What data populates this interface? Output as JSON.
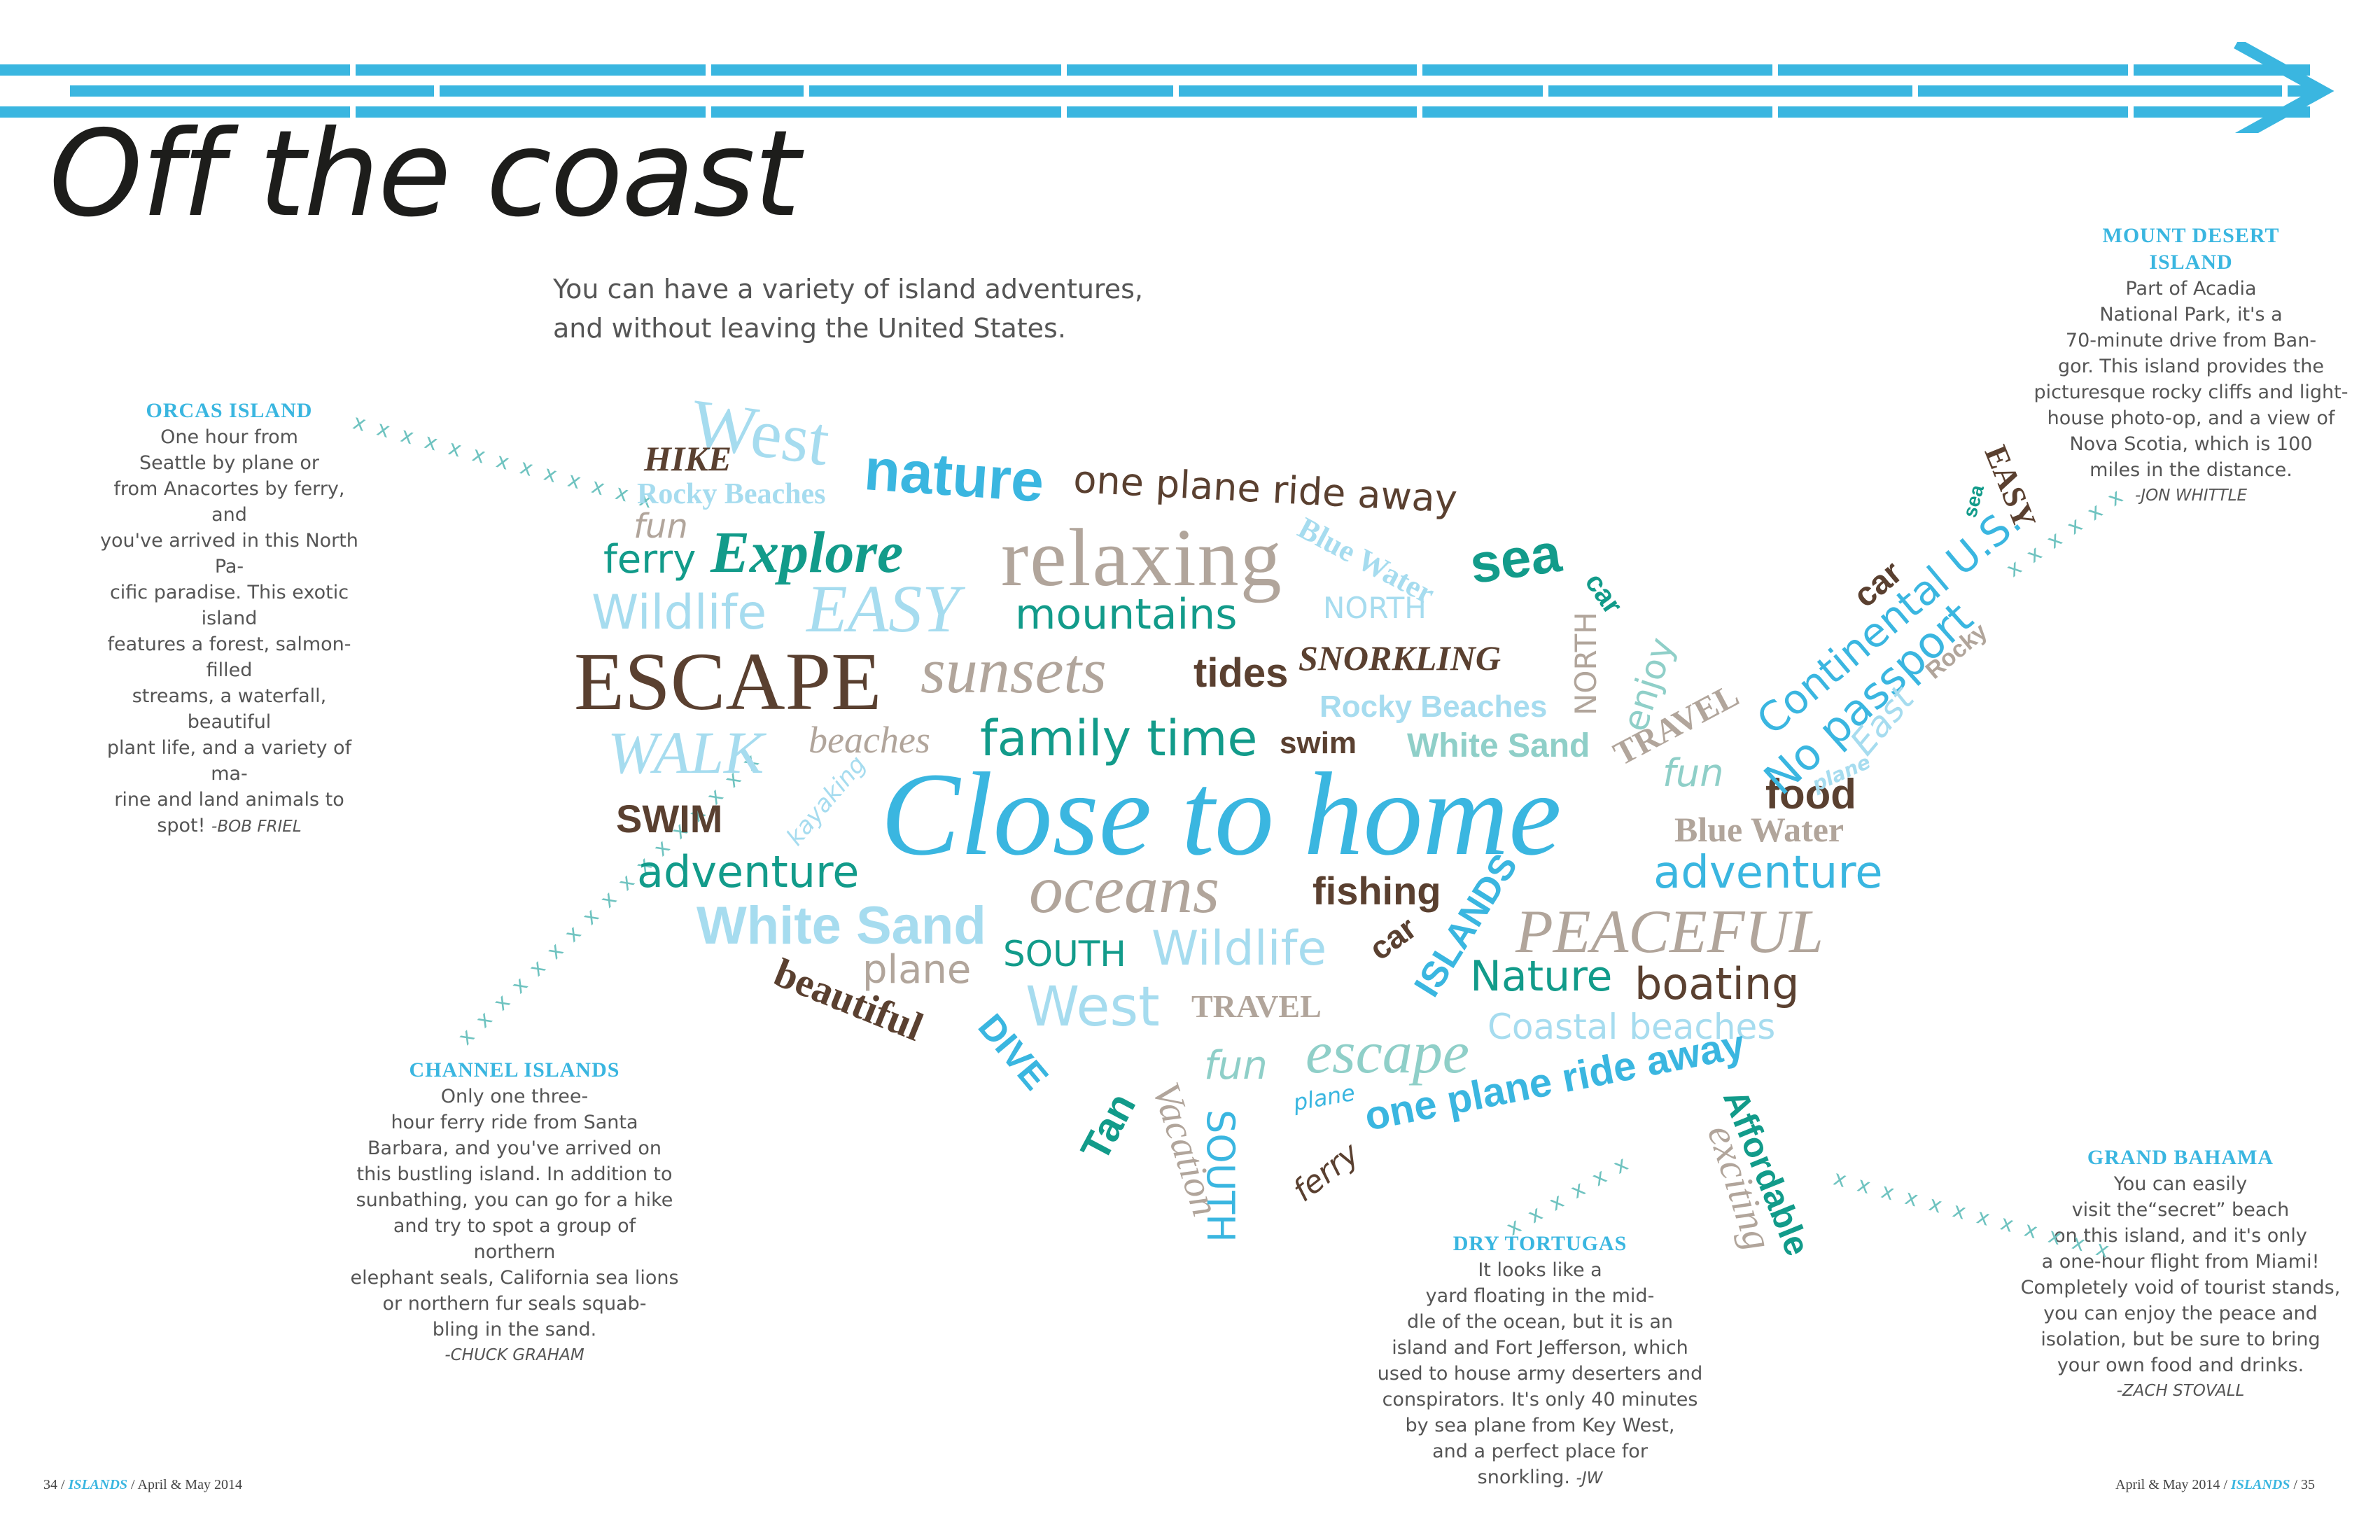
{
  "title": "Off the coast",
  "subtitle_lines": [
    "You can have a variety of island adventures,",
    "and without leaving the United States."
  ],
  "colors": {
    "accent": "#3ab6e0",
    "teal": "#129b8a",
    "brown": "#5a4030",
    "taupe": "#b1a59b",
    "light_blue": "#a6dcef",
    "mint": "#8fcfc8"
  },
  "islands": {
    "orcas": {
      "heading": "ORCAS ISLAND",
      "lines": [
        "One hour from",
        "Seattle by plane or",
        "from Anacortes by ferry, and",
        "you've arrived in this North Pa-",
        "cific paradise. This exotic island",
        "features a forest, salmon-filled",
        "streams, a waterfall, beautiful",
        "plant life, and a variety of ma-",
        "rine and land animals to"
      ],
      "last": "spot!",
      "byline": "-BOB FRIEL"
    },
    "mount_desert": {
      "heading_lines": [
        "MOUNT DESERT",
        "ISLAND"
      ],
      "lines": [
        "Part of Acadia",
        "National Park, it's a",
        "70-minute drive from Ban-",
        "gor. This island provides the",
        "picturesque rocky cliffs and light-",
        "house photo-op, and a view of",
        "Nova Scotia, which is 100",
        "miles in the distance."
      ],
      "byline": "-JON WHITTLE"
    },
    "channel": {
      "heading": "CHANNEL ISLANDS",
      "lines": [
        "Only one three-",
        "hour ferry ride from Santa",
        "Barbara, and you've arrived on",
        "this bustling island. In addition to",
        "sunbathing, you can go for a hike",
        "and try to spot a group of northern",
        "elephant seals, California sea lions",
        "or northern fur seals squab-",
        "bling in the sand."
      ],
      "byline": "-CHUCK GRAHAM"
    },
    "dry_tortugas": {
      "heading": "DRY TORTUGAS",
      "lines": [
        "It looks like a",
        "yard floating in the mid-",
        "dle of the ocean, but it is an",
        "island and Fort Jefferson, which",
        "used to house army deserters and",
        "conspirators. It's only 40 minutes",
        "by sea plane from Key West,",
        "and a perfect place for"
      ],
      "last": "snorkling.",
      "byline": "-JW"
    },
    "grand_bahama": {
      "heading": "GRAND BAHAMA",
      "lines": [
        "You can easily",
        "visit the“secret” beach",
        "on this island, and it's only",
        "a one-hour flight from Miami!",
        "Completely void of tourist stands,",
        "you can enjoy the peace and",
        "isolation, but be sure to bring",
        "your own food and drinks."
      ],
      "byline": "-ZACH STOVALL"
    }
  },
  "x_trails": {
    "orcas": "x x x x x x x x x x x x x",
    "channel": "x x x x x x x x x x x x x x x x x",
    "maine": "x x x x x x",
    "florida": "x x x x x x",
    "bahama": "x x x x x x x x x x x x"
  },
  "word_cloud": [
    "West",
    "HIKE",
    "Rocky Beaches",
    "nature",
    "one plane ride away",
    "fun",
    "ferry",
    "Explore",
    "relaxing",
    "Blue Water",
    "sea",
    "Wildlife",
    "EASY",
    "mountains",
    "NORTH",
    "car",
    "ESCAPE",
    "sunsets",
    "tides",
    "SNORKLING",
    "NORTH",
    "enjoy",
    "Rocky Beaches",
    "WALK",
    "beaches",
    "family time",
    "swim",
    "White Sand",
    "TRAVEL",
    "SWIM",
    "kayaking",
    "Close to home",
    "fun",
    "food",
    "Blue Water",
    "adventure",
    "oceans",
    "fishing",
    "adventure",
    "White Sand",
    "plane",
    "SOUTH",
    "Wildlife",
    "PEACEFUL",
    "beautiful",
    "West",
    "TRAVEL",
    "car",
    "ISLANDS",
    "Nature",
    "boating",
    "Coastal beaches",
    "DIVE",
    "fun",
    "escape",
    "Tan",
    "Vacation",
    "plane",
    "one plane ride away",
    "SOUTH",
    "ferry",
    "Affordable",
    "exciting",
    "Continental U.S.",
    "No passport",
    "East",
    "plane",
    "Rocky",
    "car",
    "sea",
    "EASY"
  ],
  "footer": {
    "left": {
      "page": "34",
      "magazine": "ISLANDS",
      "issue": "April & May 2014"
    },
    "right": {
      "page": "35",
      "magazine": "ISLANDS",
      "issue": "April & May 2014"
    },
    "sep": "/"
  }
}
